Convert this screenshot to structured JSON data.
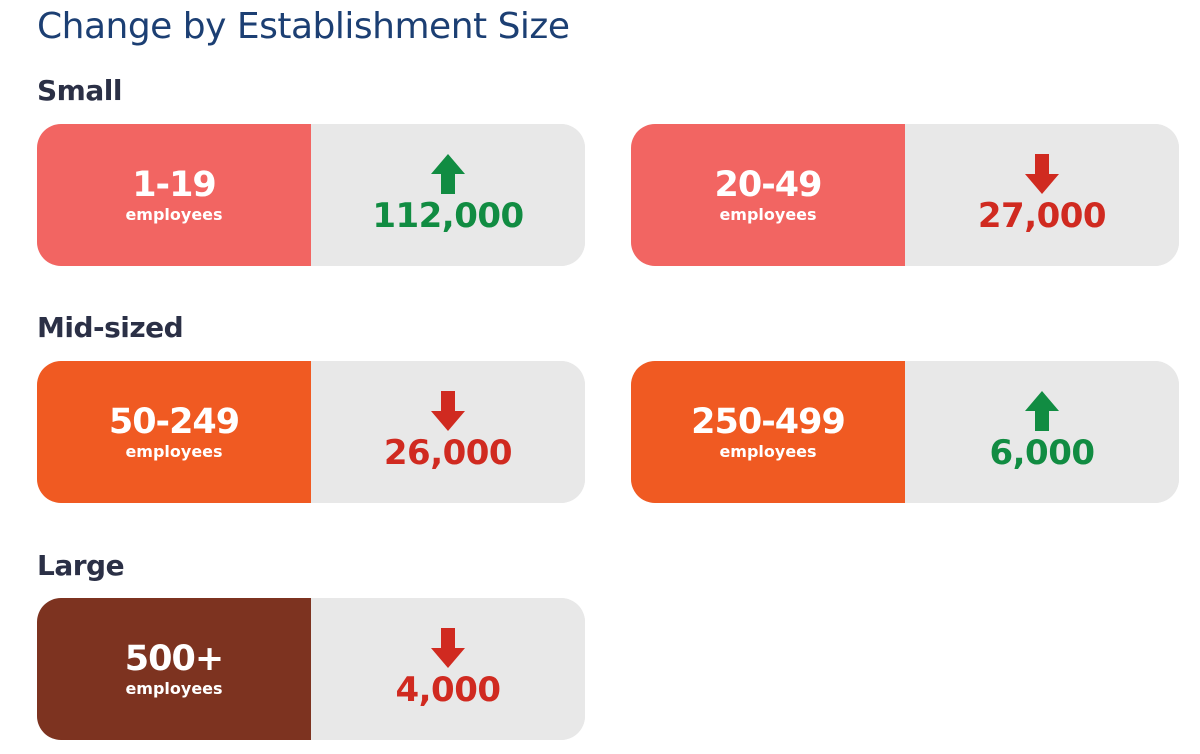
{
  "title": "Change by Establishment Size",
  "groups": {
    "small": {
      "heading": "Small",
      "cards": [
        {
          "range": "1-19",
          "unit": "employees",
          "value": "112,000",
          "direction": "up",
          "color": "#f26562"
        },
        {
          "range": "20-49",
          "unit": "employees",
          "value": "27,000",
          "direction": "down",
          "color": "#f26562"
        }
      ]
    },
    "mid": {
      "heading": "Mid-sized",
      "cards": [
        {
          "range": "50-249",
          "unit": "employees",
          "value": "26,000",
          "direction": "down",
          "color": "#f05a22"
        },
        {
          "range": "250-499",
          "unit": "employees",
          "value": "6,000",
          "direction": "up",
          "color": "#f05a22"
        }
      ]
    },
    "large": {
      "heading": "Large",
      "cards": [
        {
          "range": "500+",
          "unit": "employees",
          "value": "4,000",
          "direction": "down",
          "color": "#7d3320"
        }
      ]
    }
  },
  "colors": {
    "increase": "#118c42",
    "decrease": "#d02a20",
    "card_background": "#e8e8e8",
    "title": "#1c3f73",
    "heading": "#2b3046"
  },
  "icons": {
    "increase": "arrow-up-icon",
    "decrease": "arrow-down-icon"
  }
}
